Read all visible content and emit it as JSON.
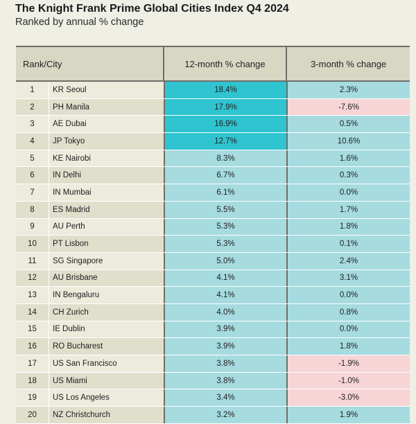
{
  "title": "The Knight Frank Prime Global Cities Index Q4 2024",
  "subtitle": "Ranked by annual % change",
  "headers": {
    "rank_city": "Rank/City",
    "m12": "12-month % change",
    "m3": "3-month % change"
  },
  "colors": {
    "strong": "#2fc4cf",
    "light": "#a6dbe0",
    "negative": "#f7d4d6"
  },
  "rows": [
    {
      "rank": "1",
      "city": "KR Seoul",
      "m12": "18.4%",
      "m3": "2.3%",
      "m12_tone": "strong",
      "m3_tone": "light"
    },
    {
      "rank": "2",
      "city": "PH Manila",
      "m12": "17.9%",
      "m3": "-7.6%",
      "m12_tone": "strong",
      "m3_tone": "negative"
    },
    {
      "rank": "3",
      "city": "AE Dubai",
      "m12": "16.9%",
      "m3": "0.5%",
      "m12_tone": "strong",
      "m3_tone": "light"
    },
    {
      "rank": "4",
      "city": "JP Tokyo",
      "m12": "12.7%",
      "m3": "10.6%",
      "m12_tone": "strong",
      "m3_tone": "light"
    },
    {
      "rank": "5",
      "city": "KE Nairobi",
      "m12": "8.3%",
      "m3": "1.6%",
      "m12_tone": "light",
      "m3_tone": "light"
    },
    {
      "rank": "6",
      "city": "IN Delhi",
      "m12": "6.7%",
      "m3": "0.3%",
      "m12_tone": "light",
      "m3_tone": "light"
    },
    {
      "rank": "7",
      "city": "IN Mumbai",
      "m12": "6.1%",
      "m3": "0.0%",
      "m12_tone": "light",
      "m3_tone": "light"
    },
    {
      "rank": "8",
      "city": "ES Madrid",
      "m12": "5.5%",
      "m3": "1.7%",
      "m12_tone": "light",
      "m3_tone": "light"
    },
    {
      "rank": "9",
      "city": "AU Perth",
      "m12": "5.3%",
      "m3": "1.8%",
      "m12_tone": "light",
      "m3_tone": "light"
    },
    {
      "rank": "10",
      "city": "PT Lisbon",
      "m12": "5.3%",
      "m3": "0.1%",
      "m12_tone": "light",
      "m3_tone": "light"
    },
    {
      "rank": "11",
      "city": "SG Singapore",
      "m12": "5.0%",
      "m3": "2.4%",
      "m12_tone": "light",
      "m3_tone": "light"
    },
    {
      "rank": "12",
      "city": "AU Brisbane",
      "m12": "4.1%",
      "m3": "3.1%",
      "m12_tone": "light",
      "m3_tone": "light"
    },
    {
      "rank": "13",
      "city": "IN Bengaluru",
      "m12": "4.1%",
      "m3": "0.0%",
      "m12_tone": "light",
      "m3_tone": "light"
    },
    {
      "rank": "14",
      "city": "CH Zurich",
      "m12": "4.0%",
      "m3": "0.8%",
      "m12_tone": "light",
      "m3_tone": "light"
    },
    {
      "rank": "15",
      "city": "IE Dublin",
      "m12": "3.9%",
      "m3": "0.0%",
      "m12_tone": "light",
      "m3_tone": "light"
    },
    {
      "rank": "16",
      "city": "RO Bucharest",
      "m12": "3.9%",
      "m3": "1.8%",
      "m12_tone": "light",
      "m3_tone": "light"
    },
    {
      "rank": "17",
      "city": "US San Francisco",
      "m12": "3.8%",
      "m3": "-1.9%",
      "m12_tone": "light",
      "m3_tone": "negative"
    },
    {
      "rank": "18",
      "city": "US Miami",
      "m12": "3.8%",
      "m3": "-1.0%",
      "m12_tone": "light",
      "m3_tone": "negative"
    },
    {
      "rank": "19",
      "city": "US Los Angeles",
      "m12": "3.4%",
      "m3": "-3.0%",
      "m12_tone": "light",
      "m3_tone": "negative"
    },
    {
      "rank": "20",
      "city": "NZ Christchurch",
      "m12": "3.2%",
      "m3": "1.9%",
      "m12_tone": "light",
      "m3_tone": "light"
    }
  ]
}
